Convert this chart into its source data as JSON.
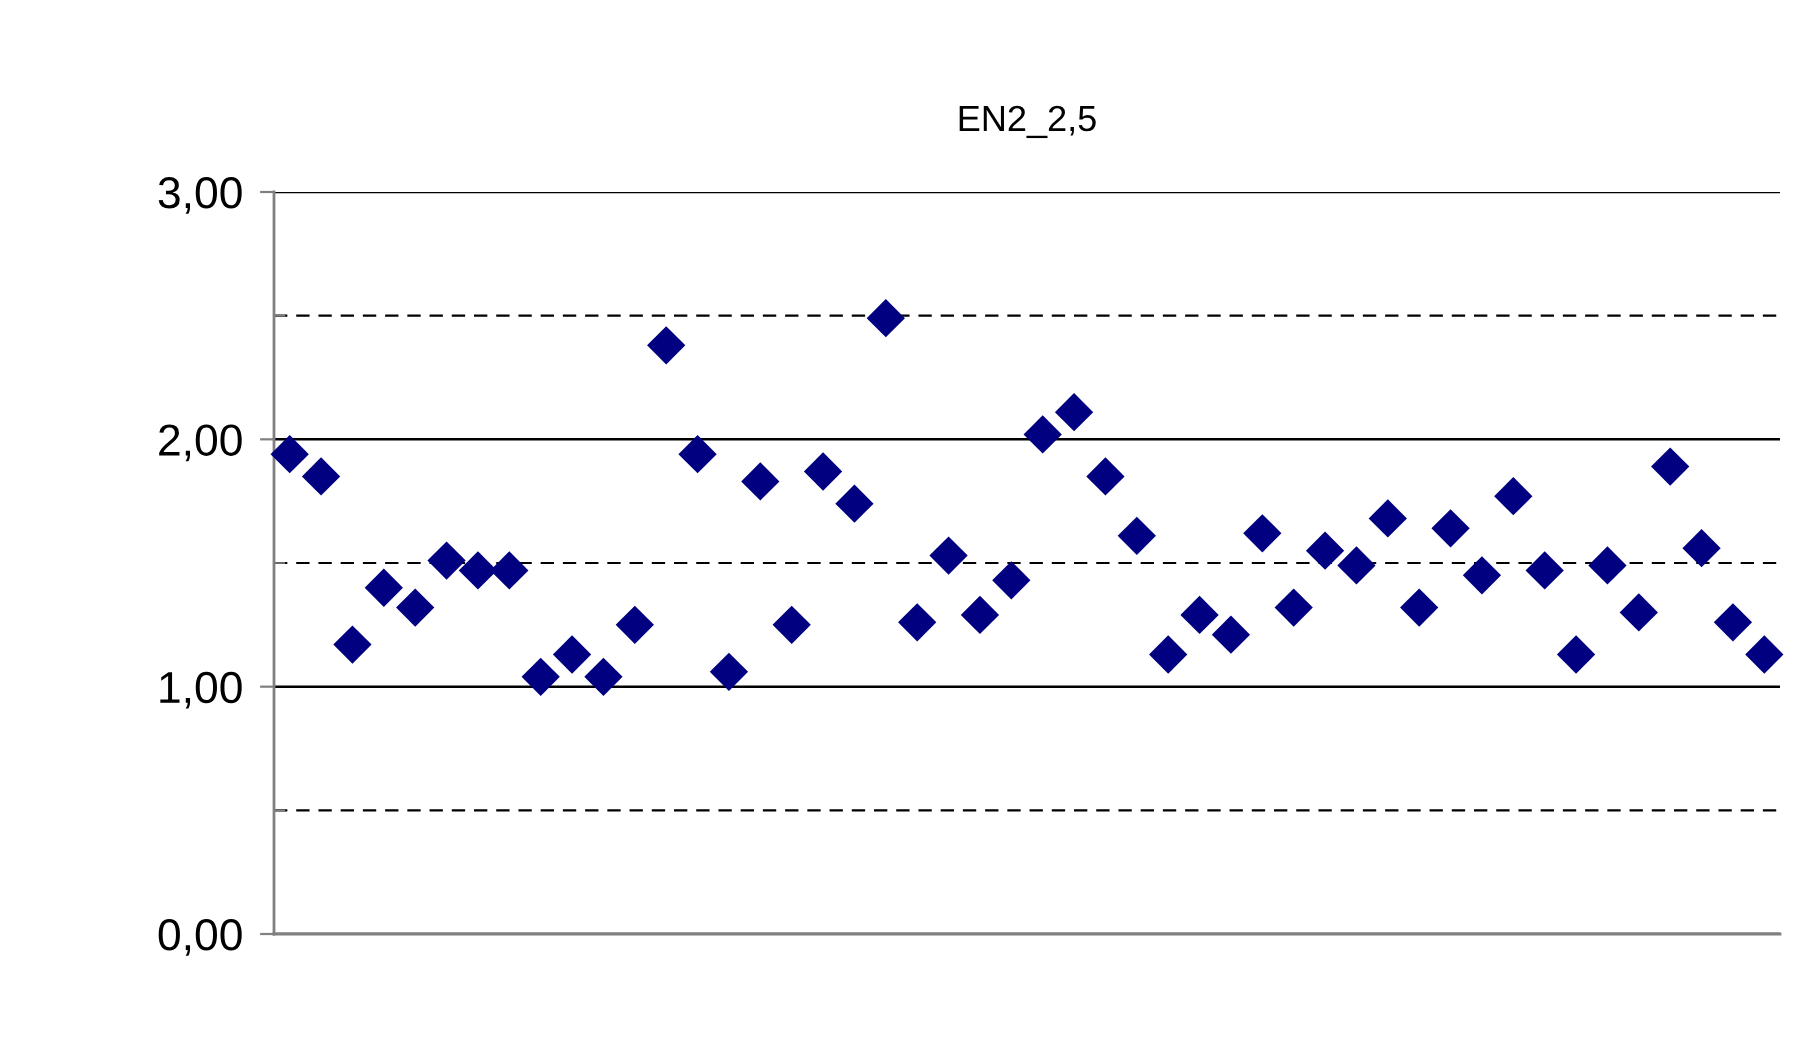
{
  "chart_data": {
    "type": "scatter",
    "title": "EN2_2,5",
    "categories": [
      null,
      null,
      null,
      null,
      null,
      null,
      null,
      null,
      null,
      null,
      null,
      null,
      null,
      null,
      null,
      null,
      null,
      null,
      null,
      null,
      null,
      null,
      null,
      null,
      null,
      null,
      null,
      null,
      null,
      null,
      null,
      null,
      null,
      null,
      null,
      null,
      null,
      null,
      null,
      null,
      null,
      null,
      null,
      null,
      null,
      null,
      null,
      null
    ],
    "values": [
      1.94,
      1.85,
      1.17,
      1.4,
      1.32,
      1.51,
      1.47,
      1.47,
      1.04,
      1.13,
      1.04,
      1.25,
      2.38,
      1.94,
      1.06,
      1.83,
      1.25,
      1.87,
      1.74,
      2.49,
      1.26,
      1.53,
      1.29,
      1.43,
      2.02,
      2.11,
      1.85,
      1.61,
      1.13,
      1.29,
      1.21,
      1.62,
      1.32,
      1.55,
      1.49,
      1.68,
      1.32,
      1.64,
      1.45,
      1.77,
      1.47,
      1.13,
      1.49,
      1.3,
      1.89,
      1.56,
      1.26,
      1.13
    ],
    "color": "#000080",
    "marker": "diamond",
    "ylim": [
      0,
      3
    ],
    "yticks": [
      {
        "value": 0,
        "label": "0,00"
      },
      {
        "value": 0.5,
        "label": null
      },
      {
        "value": 1,
        "label": "1,00"
      },
      {
        "value": 1.5,
        "label": null
      },
      {
        "value": 2,
        "label": "2,00"
      },
      {
        "value": 2.5,
        "label": null
      },
      {
        "value": 3,
        "label": "3,00"
      }
    ],
    "grid": "y"
  }
}
